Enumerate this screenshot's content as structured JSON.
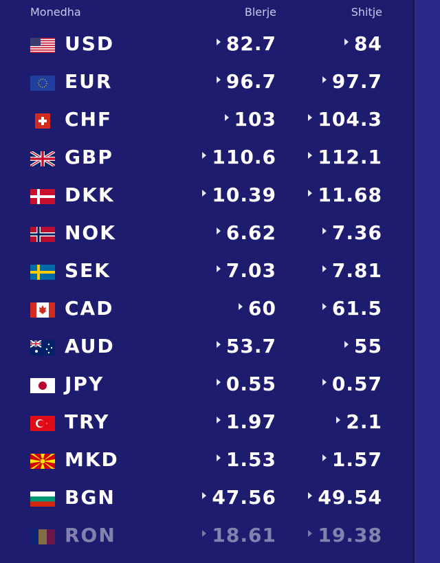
{
  "header": {
    "currency": "Monedha",
    "buy": "Blerje",
    "sell": "Shitje"
  },
  "rates": [
    {
      "flag": "us-flag-icon",
      "code": "USD",
      "buy": "82.7",
      "sell": "84"
    },
    {
      "flag": "eu-flag-icon",
      "code": "EUR",
      "buy": "96.7",
      "sell": "97.7"
    },
    {
      "flag": "ch-flag-icon",
      "code": "CHF",
      "buy": "103",
      "sell": "104.3"
    },
    {
      "flag": "gb-flag-icon",
      "code": "GBP",
      "buy": "110.6",
      "sell": "112.1"
    },
    {
      "flag": "dk-flag-icon",
      "code": "DKK",
      "buy": "10.39",
      "sell": "11.68"
    },
    {
      "flag": "no-flag-icon",
      "code": "NOK",
      "buy": "6.62",
      "sell": "7.36"
    },
    {
      "flag": "se-flag-icon",
      "code": "SEK",
      "buy": "7.03",
      "sell": "7.81"
    },
    {
      "flag": "ca-flag-icon",
      "code": "CAD",
      "buy": "60",
      "sell": "61.5"
    },
    {
      "flag": "au-flag-icon",
      "code": "AUD",
      "buy": "53.7",
      "sell": "55"
    },
    {
      "flag": "jp-flag-icon",
      "code": "JPY",
      "buy": "0.55",
      "sell": "0.57"
    },
    {
      "flag": "tr-flag-icon",
      "code": "TRY",
      "buy": "1.97",
      "sell": "2.1"
    },
    {
      "flag": "mk-flag-icon",
      "code": "MKD",
      "buy": "1.53",
      "sell": "1.57"
    },
    {
      "flag": "bg-flag-icon",
      "code": "BGN",
      "buy": "47.56",
      "sell": "49.54"
    },
    {
      "flag": "ro-flag-icon",
      "code": "RON",
      "buy": "18.61",
      "sell": "19.38"
    }
  ],
  "colors": {
    "background": "#1e1c6e",
    "text": "#ffffff",
    "header_text": "#c9c8ea"
  }
}
